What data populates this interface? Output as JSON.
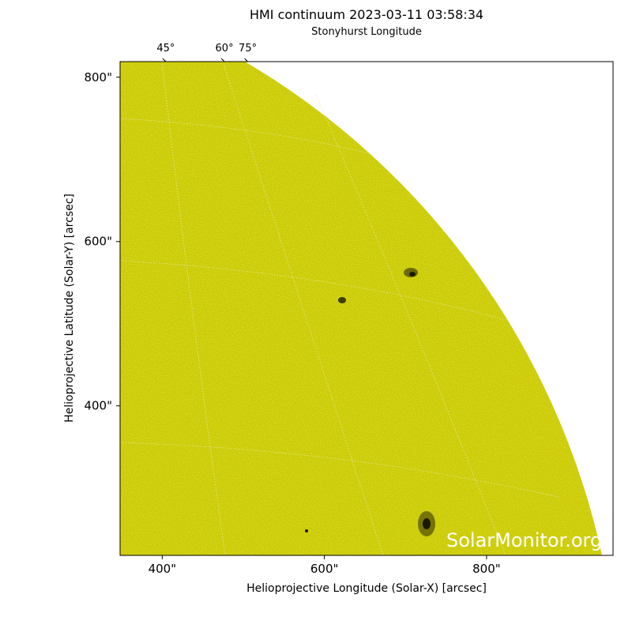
{
  "chart_data": {
    "type": "image",
    "title": "HMI continuum 2023-03-11 03:58:34",
    "top_axis_label": "Stonyhurst Longitude",
    "xlabel": "Helioprojective Longitude (Solar-X) [arcsec]",
    "ylabel": "Helioprojective Latitude (Solar-Y) [arcsec]",
    "xlim": [
      348,
      956
    ],
    "ylim": [
      218,
      819
    ],
    "xticks": [
      {
        "value": 400,
        "label": "400\""
      },
      {
        "value": 600,
        "label": "600\""
      },
      {
        "value": 800,
        "label": "800\""
      }
    ],
    "yticks": [
      {
        "value": 400,
        "label": "400\""
      },
      {
        "value": 600,
        "label": "600\""
      },
      {
        "value": 800,
        "label": "800\""
      }
    ],
    "top_ticks": [
      {
        "value": 45,
        "label": "45°"
      },
      {
        "value": 60,
        "label": "60°"
      },
      {
        "value": 75,
        "label": "75°"
      }
    ],
    "watermark": "SolarMonitor.org",
    "color": "#c8c800"
  }
}
